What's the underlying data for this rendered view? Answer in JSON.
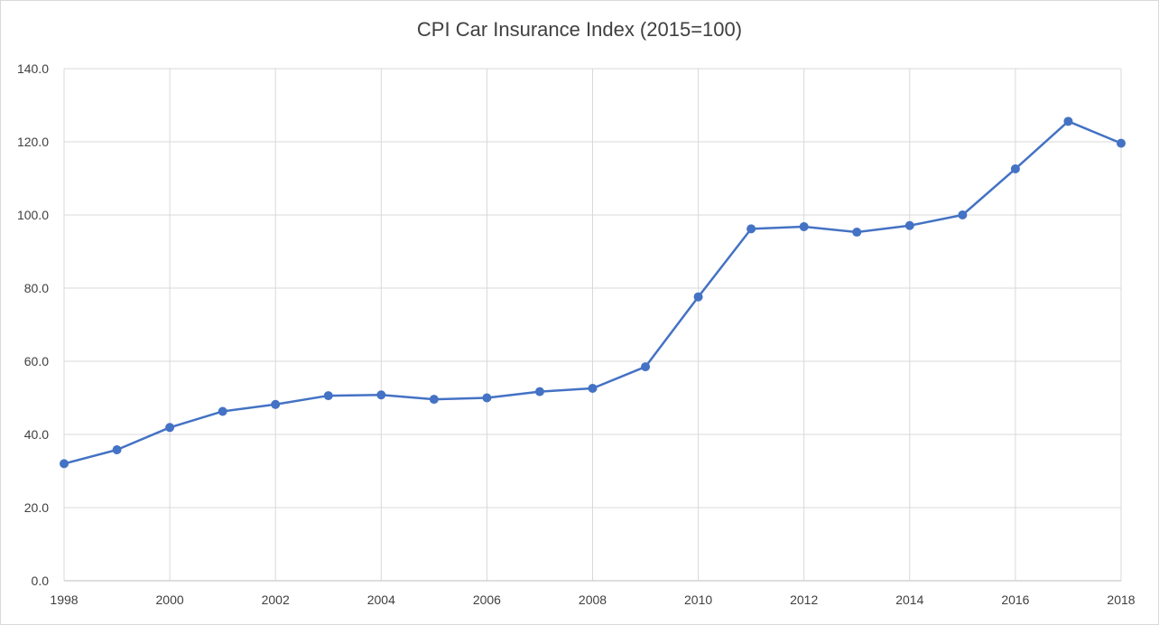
{
  "chart_data": {
    "type": "line",
    "title": "CPI Car Insurance Index (2015=100)",
    "xlabel": "",
    "ylabel": "",
    "x": [
      1998,
      1999,
      2000,
      2001,
      2002,
      2003,
      2004,
      2005,
      2006,
      2007,
      2008,
      2009,
      2010,
      2011,
      2012,
      2013,
      2014,
      2015,
      2016,
      2017,
      2018
    ],
    "series": [
      {
        "values": [
          32.0,
          35.8,
          41.9,
          46.3,
          48.2,
          50.6,
          50.8,
          49.6,
          50.0,
          51.7,
          52.6,
          58.5,
          77.6,
          96.2,
          96.8,
          95.3,
          97.1,
          100.0,
          112.6,
          125.6,
          119.6
        ],
        "color": "#4472c4"
      }
    ],
    "xticks": [
      "1998",
      "2000",
      "2002",
      "2004",
      "2006",
      "2008",
      "2010",
      "2012",
      "2014",
      "2016",
      "2018"
    ],
    "yticks": [
      "0.0",
      "20.0",
      "40.0",
      "60.0",
      "80.0",
      "100.0",
      "120.0",
      "140.0"
    ],
    "ylim": [
      0,
      140
    ],
    "xlim": [
      1998,
      2018
    ],
    "grid": true,
    "legend": "none"
  }
}
